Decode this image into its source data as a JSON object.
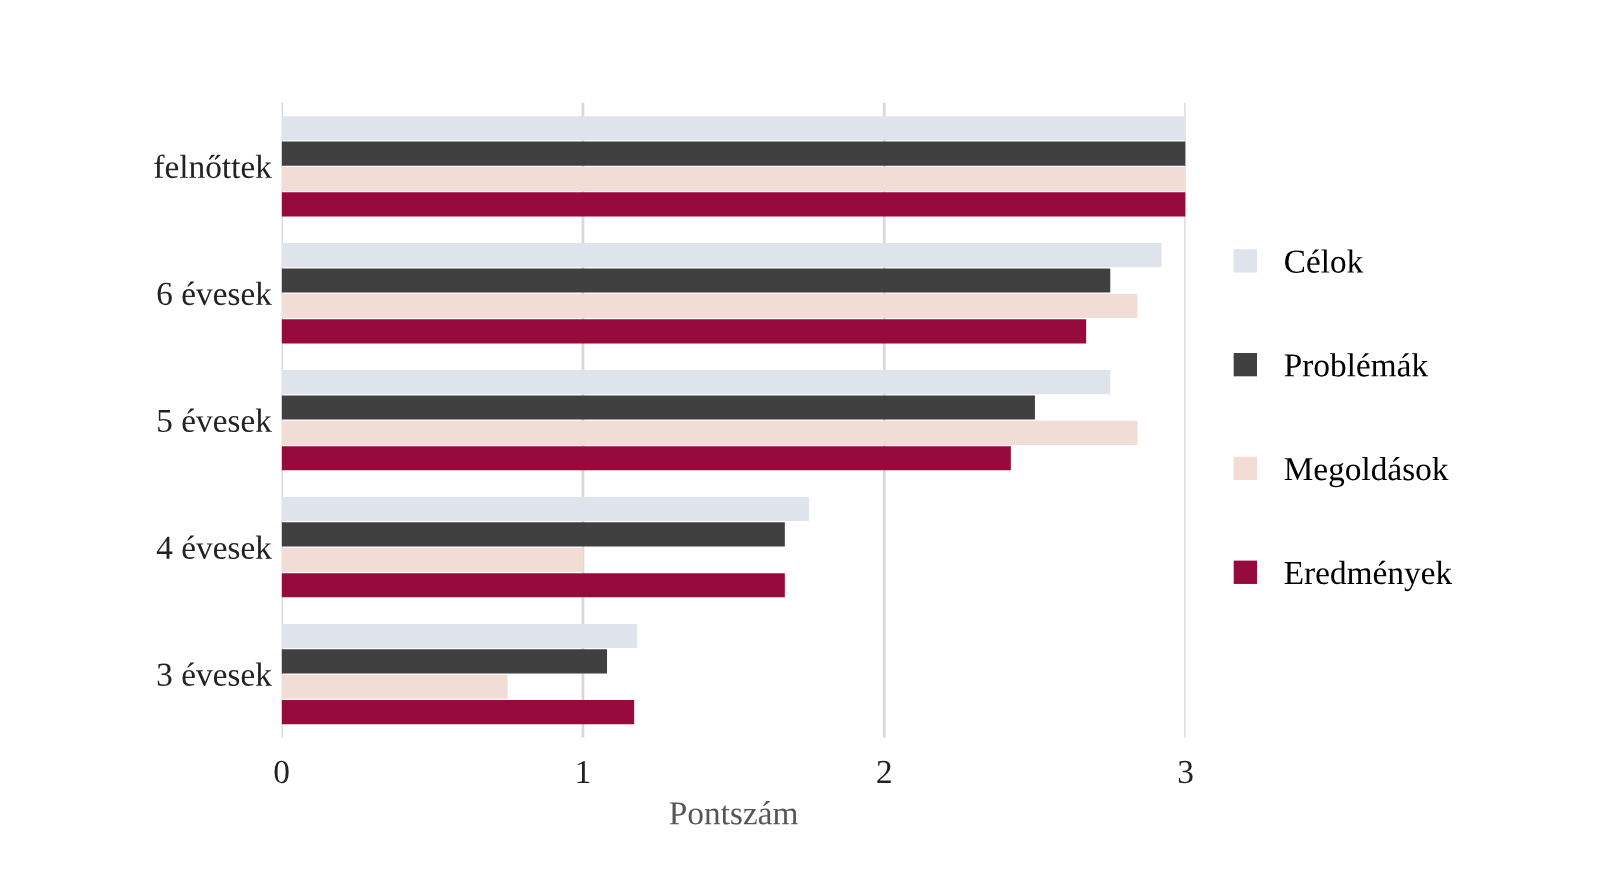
{
  "chart_data": {
    "type": "bar",
    "orientation": "horizontal",
    "xlabel": "Pontszám",
    "categories": [
      "felnőttek",
      "6 évesek",
      "5 évesek",
      "4 évesek",
      "3 évesek"
    ],
    "series": [
      {
        "name": "Célok",
        "color": "#dfe3ec",
        "values": [
          3,
          2.92,
          2.75,
          1.75,
          1.18
        ]
      },
      {
        "name": "Problémák",
        "color": "#404040",
        "values": [
          3,
          2.75,
          2.5,
          1.67,
          1.08
        ]
      },
      {
        "name": "Megoldások",
        "color": "#f2ddd6",
        "values": [
          3,
          2.84,
          2.84,
          1.0,
          0.75
        ]
      },
      {
        "name": "Eredmények",
        "color": "#960a3c",
        "values": [
          3,
          2.67,
          2.42,
          1.67,
          1.17
        ]
      }
    ],
    "xlim": [
      0,
      3
    ],
    "xticks": [
      0,
      1,
      2,
      3
    ],
    "grid": "x",
    "legend": "right"
  }
}
